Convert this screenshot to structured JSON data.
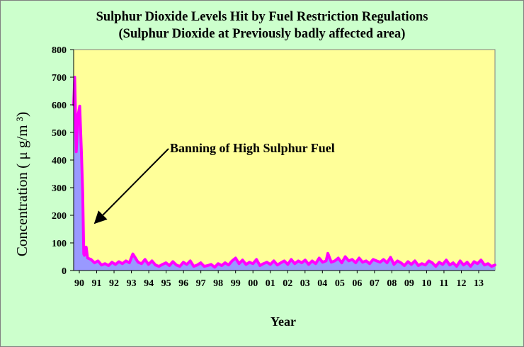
{
  "colors": {
    "background": "#ccffcc",
    "plot_area": "#ffff99",
    "line": "#ff00ff",
    "fill": "#9999ff"
  },
  "chart_data": {
    "type": "area",
    "title": "Sulphur  Dioxide Levels Hit by Fuel Restriction Regulations",
    "subtitle": "(Sulphur  Dioxide at Previously badly affected area)",
    "xlabel": "Year",
    "ylabel": "Concentration (        μ g/m ³)",
    "ylim": [
      0,
      800
    ],
    "yticks": [
      0,
      100,
      200,
      300,
      400,
      500,
      600,
      700,
      800
    ],
    "xticks": [
      "90",
      "91",
      "92",
      "93",
      "94",
      "95",
      "96",
      "97",
      "98",
      "99",
      "00",
      "01",
      "02",
      "03",
      "04",
      "05",
      "06",
      "07",
      "08",
      "09",
      "10",
      "11",
      "12",
      "13"
    ],
    "xlim": [
      1990,
      2014.2
    ],
    "grid": false,
    "legend": "none",
    "annotation": "Banning of High Sulphur  Fuel",
    "series": [
      {
        "x": [
          1990.0,
          1990.06,
          1990.15,
          1990.25,
          1990.35,
          1990.45,
          1990.52,
          1990.58,
          1990.62,
          1990.72,
          1990.8,
          1991.0,
          1991.2,
          1991.4,
          1991.6,
          1991.8,
          1992.0,
          1992.2,
          1992.4,
          1992.6,
          1992.8,
          1993.0,
          1993.2,
          1993.4,
          1993.5,
          1993.7,
          1993.9,
          1994.1,
          1994.3,
          1994.5,
          1994.7,
          1994.9,
          1995.1,
          1995.3,
          1995.5,
          1995.7,
          1995.9,
          1996.1,
          1996.3,
          1996.5,
          1996.7,
          1996.9,
          1997.1,
          1997.3,
          1997.5,
          1997.7,
          1997.9,
          1998.1,
          1998.3,
          1998.5,
          1998.7,
          1998.9,
          1999.1,
          1999.3,
          1999.5,
          1999.7,
          1999.9,
          2000.1,
          2000.3,
          2000.5,
          2000.7,
          2000.9,
          2001.1,
          2001.3,
          2001.5,
          2001.7,
          2001.9,
          2002.1,
          2002.3,
          2002.5,
          2002.7,
          2002.9,
          2003.1,
          2003.3,
          2003.5,
          2003.7,
          2003.9,
          2004.1,
          2004.3,
          2004.5,
          2004.6,
          2004.8,
          2005.0,
          2005.2,
          2005.4,
          2005.6,
          2005.8,
          2006.0,
          2006.2,
          2006.4,
          2006.6,
          2006.8,
          2007.0,
          2007.2,
          2007.4,
          2007.6,
          2007.8,
          2008.0,
          2008.2,
          2008.4,
          2008.6,
          2008.8,
          2009.0,
          2009.2,
          2009.4,
          2009.6,
          2009.8,
          2010.0,
          2010.2,
          2010.4,
          2010.6,
          2010.8,
          2011.0,
          2011.2,
          2011.4,
          2011.6,
          2011.8,
          2012.0,
          2012.2,
          2012.4,
          2012.6,
          2012.8,
          2013.0,
          2013.2,
          2013.4,
          2013.6,
          2013.8,
          2014.0,
          2014.2
        ],
        "values": [
          600,
          700,
          430,
          560,
          595,
          420,
          280,
          60,
          55,
          85,
          45,
          40,
          28,
          35,
          20,
          25,
          18,
          30,
          22,
          32,
          25,
          35,
          28,
          60,
          50,
          30,
          25,
          40,
          22,
          35,
          20,
          15,
          22,
          28,
          18,
          32,
          20,
          15,
          30,
          22,
          35,
          15,
          20,
          28,
          15,
          18,
          22,
          12,
          25,
          18,
          28,
          20,
          35,
          45,
          25,
          38,
          22,
          30,
          25,
          40,
          18,
          25,
          30,
          22,
          35,
          20,
          28,
          35,
          22,
          40,
          25,
          35,
          28,
          38,
          22,
          35,
          25,
          45,
          30,
          35,
          62,
          30,
          35,
          45,
          28,
          50,
          35,
          40,
          28,
          45,
          30,
          35,
          25,
          40,
          35,
          30,
          40,
          28,
          48,
          22,
          35,
          28,
          18,
          32,
          22,
          35,
          18,
          25,
          20,
          35,
          28,
          15,
          30,
          22,
          38,
          20,
          28,
          15,
          35,
          20,
          30,
          15,
          32,
          25,
          38,
          20,
          25,
          15,
          20
        ]
      }
    ]
  }
}
